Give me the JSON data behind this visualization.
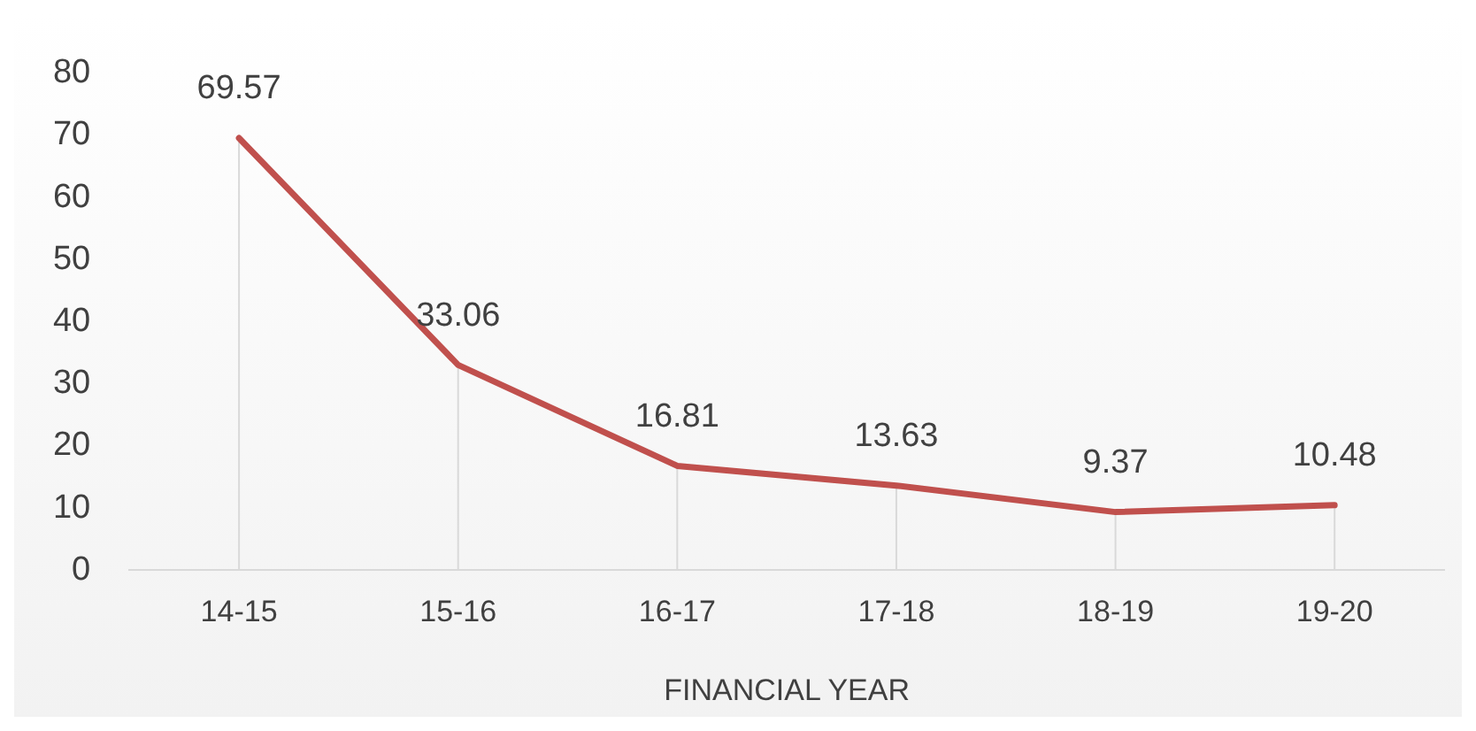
{
  "chart_data": {
    "type": "line",
    "xlabel": "FINANCIAL YEAR",
    "categories": [
      "14-15",
      "15-16",
      "16-17",
      "17-18",
      "18-19",
      "19-20"
    ],
    "series": [
      {
        "color": "#c0504d",
        "values": [
          69.57,
          33.06,
          16.81,
          13.63,
          9.37,
          10.48
        ]
      }
    ],
    "ylim": [
      0,
      80
    ],
    "yticks": [
      0,
      10,
      20,
      30,
      40,
      50,
      60,
      70,
      80
    ],
    "grid": "x",
    "legend": false,
    "marker": "none",
    "line_style": "solid",
    "data_labels": true
  }
}
